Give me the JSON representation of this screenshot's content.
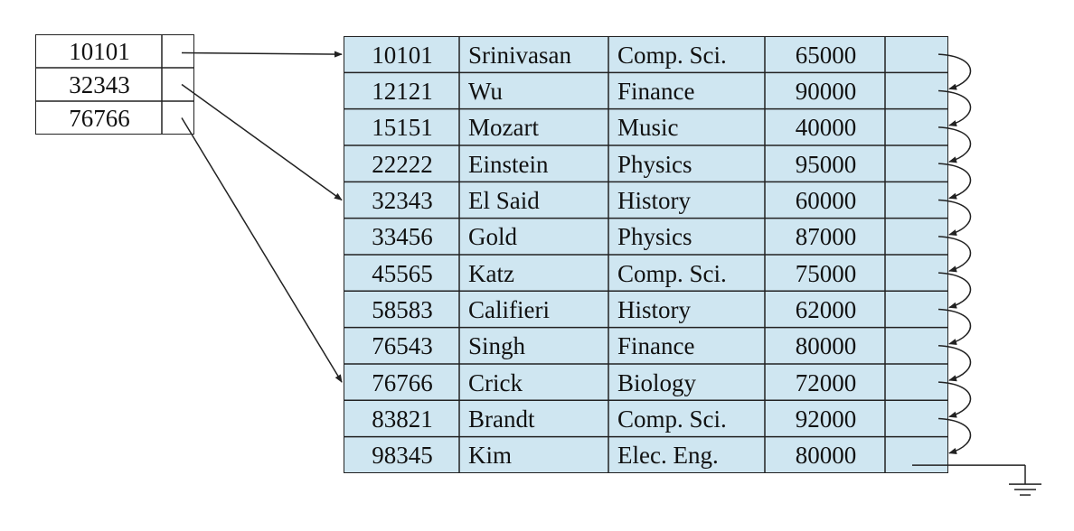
{
  "index": {
    "entries": [
      {
        "key": "10101",
        "target_row": 0
      },
      {
        "key": "32343",
        "target_row": 4
      },
      {
        "key": "76766",
        "target_row": 9
      }
    ]
  },
  "records": {
    "rows": [
      {
        "id": "10101",
        "name": "Srinivasan",
        "dept": "Comp. Sci.",
        "salary": "65000"
      },
      {
        "id": "12121",
        "name": "Wu",
        "dept": "Finance",
        "salary": "90000"
      },
      {
        "id": "15151",
        "name": "Mozart",
        "dept": "Music",
        "salary": "40000"
      },
      {
        "id": "22222",
        "name": "Einstein",
        "dept": "Physics",
        "salary": "95000"
      },
      {
        "id": "32343",
        "name": "El Said",
        "dept": "History",
        "salary": "60000"
      },
      {
        "id": "33456",
        "name": "Gold",
        "dept": "Physics",
        "salary": "87000"
      },
      {
        "id": "45565",
        "name": "Katz",
        "dept": "Comp. Sci.",
        "salary": "75000"
      },
      {
        "id": "58583",
        "name": "Califieri",
        "dept": "History",
        "salary": "62000"
      },
      {
        "id": "76543",
        "name": "Singh",
        "dept": "Finance",
        "salary": "80000"
      },
      {
        "id": "76766",
        "name": "Crick",
        "dept": "Biology",
        "salary": "72000"
      },
      {
        "id": "83821",
        "name": "Brandt",
        "dept": "Comp. Sci.",
        "salary": "92000"
      },
      {
        "id": "98345",
        "name": "Kim",
        "dept": "Elec. Eng.",
        "salary": "80000"
      }
    ]
  },
  "colors": {
    "record_fill": "#cfe6f1",
    "line": "#222222"
  }
}
